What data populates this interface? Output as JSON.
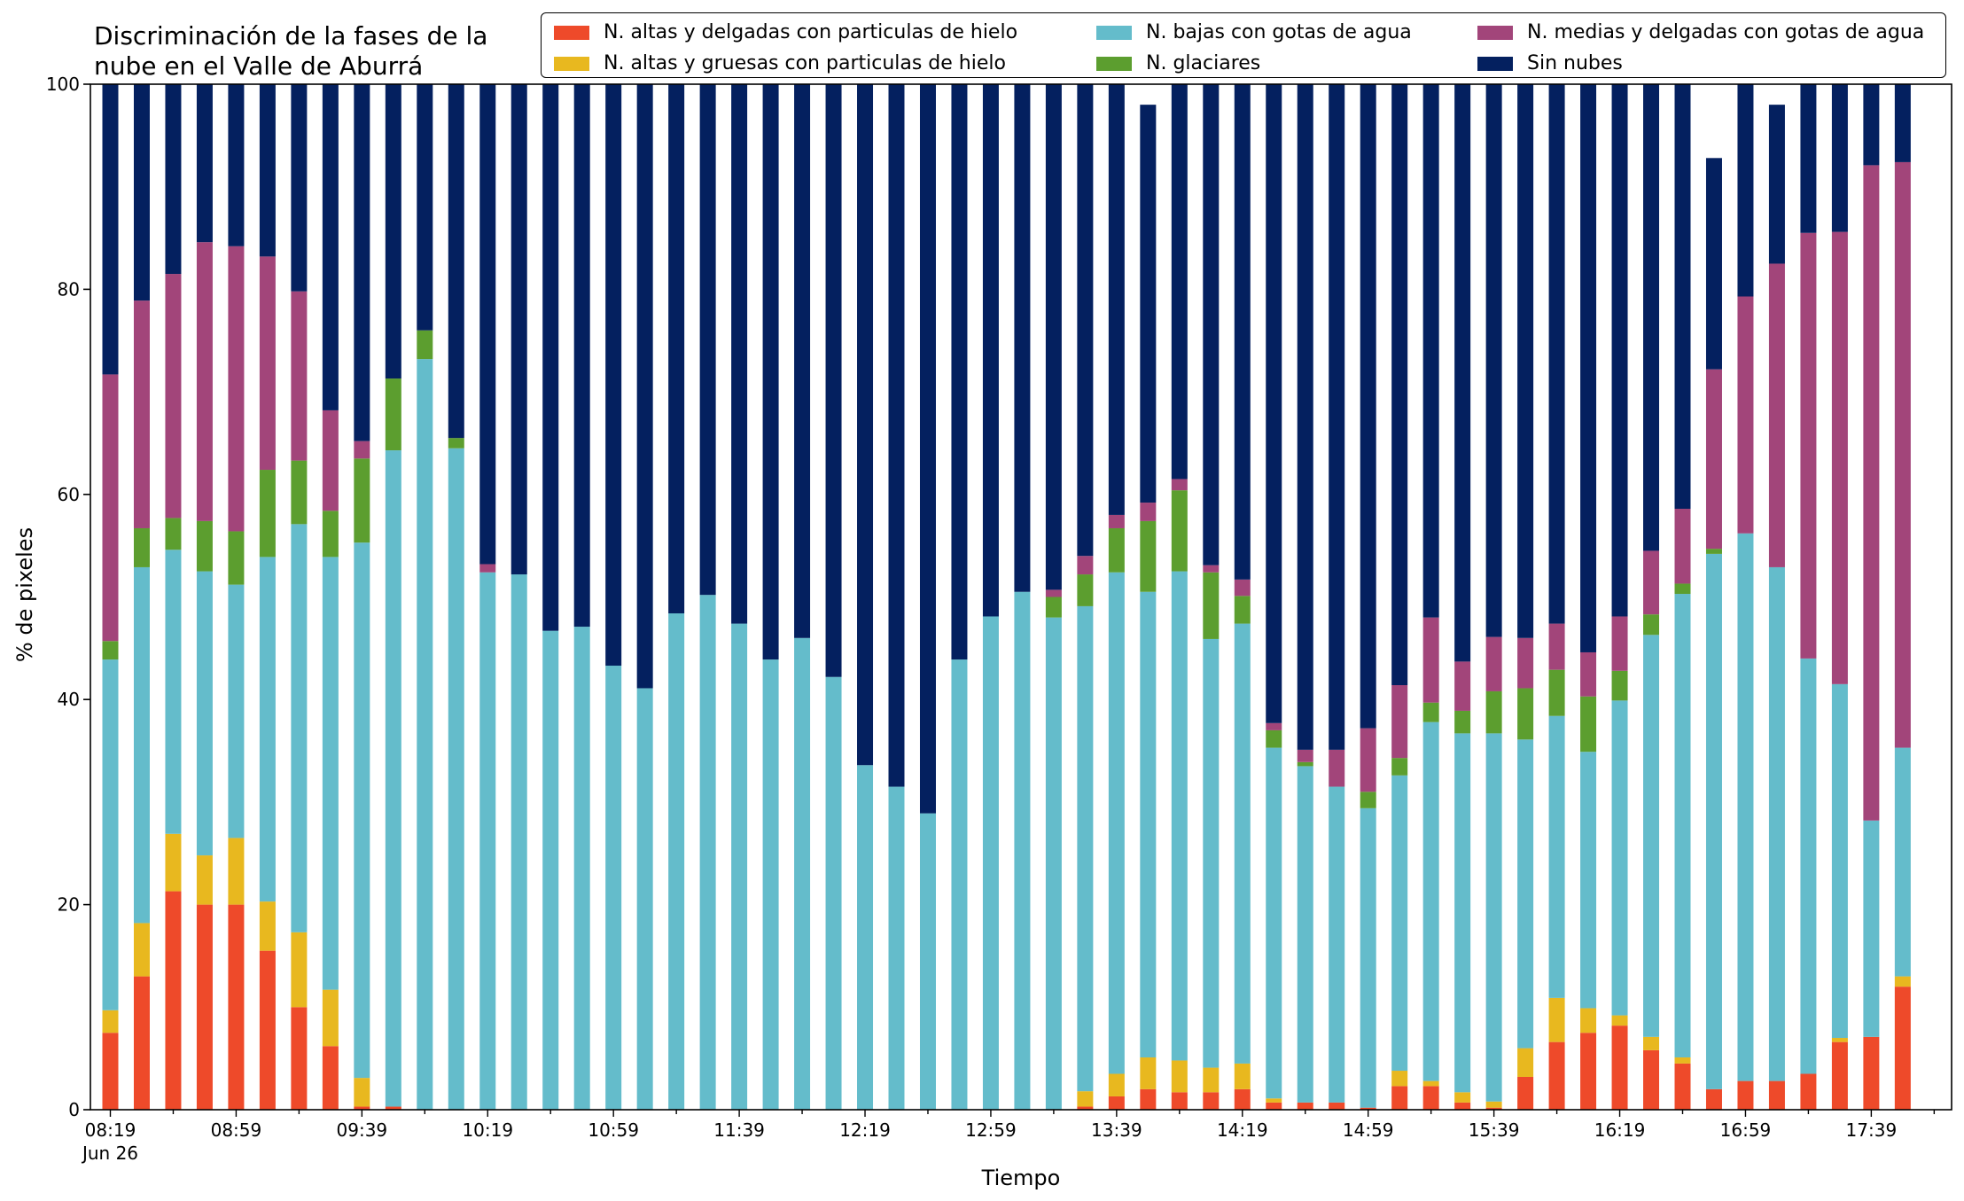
{
  "chart_data": {
    "type": "bar",
    "stacked": true,
    "title": "Discriminación de la fases de la\nnube en el Valle de Aburrá",
    "xlabel": "Tiempo",
    "ylabel": "% de pixeles",
    "ylim": [
      0,
      100
    ],
    "yticks": [
      "0",
      "20",
      "40",
      "60",
      "80",
      "100"
    ],
    "x_tick_labels": [
      "08:19",
      "08:59",
      "09:39",
      "10:19",
      "10:59",
      "11:39",
      "12:19",
      "12:59",
      "13:39",
      "14:19",
      "14:59",
      "15:39",
      "16:19",
      "16:59",
      "17:39"
    ],
    "x_date_label": "Jun 26",
    "legend_position": "top-right",
    "categories": [
      "08:19",
      "08:29",
      "08:39",
      "08:49",
      "08:59",
      "09:09",
      "09:19",
      "09:29",
      "09:39",
      "09:49",
      "09:59",
      "10:09",
      "10:19",
      "10:29",
      "10:39",
      "10:49",
      "10:59",
      "11:09",
      "11:19",
      "11:29",
      "11:39",
      "11:49",
      "11:59",
      "12:09",
      "12:19",
      "12:29",
      "12:39",
      "12:49",
      "12:59",
      "13:09",
      "13:19",
      "13:29",
      "13:39",
      "13:49",
      "13:59",
      "14:09",
      "14:19",
      "14:29",
      "14:39",
      "14:49",
      "14:59",
      "15:09",
      "15:19",
      "15:29",
      "15:39",
      "15:49",
      "15:59",
      "16:09",
      "16:19",
      "16:29",
      "16:39",
      "16:49",
      "16:59",
      "17:09",
      "17:19",
      "17:29",
      "17:39",
      "17:49"
    ],
    "series": [
      {
        "name": "N. altas y delgadas con particulas de hielo",
        "color": "#ee4a2a",
        "values": [
          7.5,
          13,
          21.3,
          20,
          20,
          15.5,
          10,
          6.2,
          0.3,
          0.3,
          0,
          0,
          0,
          0,
          0,
          0,
          0,
          0,
          0,
          0,
          0,
          0,
          0,
          0,
          0,
          0,
          0,
          0,
          0,
          0,
          0,
          0.3,
          1.3,
          2,
          1.7,
          1.7,
          2,
          0.7,
          0.7,
          0.7,
          0.2,
          2.3,
          2.3,
          0.7,
          0.2,
          3.2,
          6.6,
          7.5,
          8.2,
          5.8,
          4.5,
          2,
          2.8,
          2.8,
          3.5,
          6.6,
          7.1,
          12
        ]
      },
      {
        "name": "N. altas y gruesas con particulas de hielo",
        "color": "#e8b81f",
        "values": [
          2.2,
          5.2,
          5.6,
          4.8,
          6.5,
          4.8,
          7.3,
          5.5,
          2.8,
          0,
          0,
          0,
          0,
          0,
          0,
          0,
          0,
          0,
          0,
          0,
          0,
          0,
          0,
          0,
          0,
          0,
          0,
          0,
          0,
          0,
          0,
          1.5,
          2.2,
          3.1,
          3.1,
          2.4,
          2.5,
          0.4,
          0,
          0,
          0,
          1.5,
          0.5,
          1,
          0.6,
          2.8,
          4.3,
          2.4,
          1,
          1.3,
          0.6,
          0,
          0,
          0,
          0,
          0.4,
          0,
          1
        ]
      },
      {
        "name": "N. bajas con gotas de agua",
        "color": "#64bccb",
        "values": [
          34.2,
          34.7,
          27.7,
          27.7,
          24.7,
          33.6,
          39.8,
          42.2,
          52.2,
          64,
          73.2,
          64.5,
          52.4,
          52.2,
          46.7,
          47.1,
          43.3,
          41.1,
          48.4,
          50.2,
          47.4,
          43.9,
          46,
          42.2,
          33.6,
          31.5,
          28.9,
          43.9,
          48.1,
          50.5,
          48,
          47.3,
          48.9,
          45.4,
          47.7,
          41.8,
          42.9,
          34.2,
          32.8,
          30.8,
          29.2,
          28.8,
          35,
          35,
          35.9,
          30.1,
          27.5,
          25,
          30.7,
          39.2,
          45.2,
          52.2,
          53.4,
          50.1,
          40.5,
          34.5,
          21.1,
          22.3
        ]
      },
      {
        "name": "N. glaciares",
        "color": "#5c9e2f",
        "values": [
          1.8,
          3.8,
          3.1,
          4.9,
          5.2,
          8.5,
          6.2,
          4.5,
          8.2,
          7,
          2.8,
          1,
          0,
          0,
          0,
          0,
          0,
          0,
          0,
          0,
          0,
          0,
          0,
          0,
          0,
          0,
          0,
          0,
          0,
          0,
          2,
          3.1,
          4.3,
          6.9,
          7.9,
          6.5,
          2.7,
          1.7,
          0.4,
          0,
          1.6,
          1.7,
          1.9,
          2.2,
          4.1,
          5,
          4.5,
          5.4,
          2.9,
          2,
          1,
          0.5,
          0,
          0,
          0,
          0,
          0,
          0
        ]
      },
      {
        "name": "N. medias y delgadas con gotas de agua",
        "color": "#a2457a",
        "values": [
          26,
          22.2,
          23.8,
          27.2,
          27.8,
          20.8,
          16.5,
          9.8,
          1.7,
          0,
          0,
          0,
          0.8,
          0,
          0,
          0,
          0,
          0,
          0,
          0,
          0,
          0,
          0,
          0,
          0,
          0,
          0,
          0,
          0,
          0,
          0.7,
          1.8,
          1.3,
          1.8,
          1.1,
          0.7,
          1.6,
          0.7,
          1.2,
          3.6,
          6.2,
          7.1,
          8.3,
          4.8,
          5.3,
          4.9,
          4.5,
          4.3,
          5.3,
          6.2,
          7.3,
          17.5,
          23.1,
          29.6,
          41.5,
          44.1,
          63.9,
          57.1
        ]
      },
      {
        "name": "Sin nubes",
        "color": "#04205f",
        "values": [
          28.3,
          21.1,
          18.5,
          15.4,
          15.8,
          16.8,
          20.2,
          31.8,
          34.8,
          28.7,
          24,
          34.5,
          46.8,
          47.8,
          53.3,
          52.9,
          56.7,
          58.9,
          51.6,
          49.8,
          52.6,
          56.1,
          54,
          57.8,
          66.4,
          68.5,
          71.1,
          56.1,
          51.9,
          49.5,
          49.3,
          46,
          42,
          38.8,
          38.5,
          46.9,
          48.3,
          62.3,
          64.9,
          64.9,
          62.8,
          58.6,
          52,
          56.3,
          53.9,
          54,
          52.6,
          55.4,
          51.9,
          45.5,
          41.4,
          20.6,
          20.7,
          15.5,
          14.5,
          14.4,
          7.9,
          7.6
        ]
      }
    ]
  }
}
